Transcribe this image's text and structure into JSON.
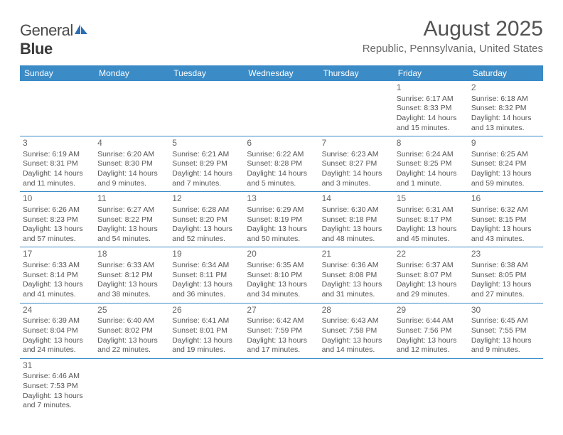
{
  "logo": {
    "word1": "General",
    "word2": "Blue"
  },
  "title": "August 2025",
  "location": "Republic, Pennsylvania, United States",
  "colors": {
    "header_bg": "#3b8bc7",
    "header_fg": "#ffffff",
    "border": "#3b8bc7",
    "text": "#555555",
    "title": "#535353"
  },
  "weekdays": [
    "Sunday",
    "Monday",
    "Tuesday",
    "Wednesday",
    "Thursday",
    "Friday",
    "Saturday"
  ],
  "weeks": [
    [
      null,
      null,
      null,
      null,
      null,
      {
        "n": "1",
        "sr": "6:17 AM",
        "ss": "8:33 PM",
        "dl": "14 hours and 15 minutes."
      },
      {
        "n": "2",
        "sr": "6:18 AM",
        "ss": "8:32 PM",
        "dl": "14 hours and 13 minutes."
      }
    ],
    [
      {
        "n": "3",
        "sr": "6:19 AM",
        "ss": "8:31 PM",
        "dl": "14 hours and 11 minutes."
      },
      {
        "n": "4",
        "sr": "6:20 AM",
        "ss": "8:30 PM",
        "dl": "14 hours and 9 minutes."
      },
      {
        "n": "5",
        "sr": "6:21 AM",
        "ss": "8:29 PM",
        "dl": "14 hours and 7 minutes."
      },
      {
        "n": "6",
        "sr": "6:22 AM",
        "ss": "8:28 PM",
        "dl": "14 hours and 5 minutes."
      },
      {
        "n": "7",
        "sr": "6:23 AM",
        "ss": "8:27 PM",
        "dl": "14 hours and 3 minutes."
      },
      {
        "n": "8",
        "sr": "6:24 AM",
        "ss": "8:25 PM",
        "dl": "14 hours and 1 minute."
      },
      {
        "n": "9",
        "sr": "6:25 AM",
        "ss": "8:24 PM",
        "dl": "13 hours and 59 minutes."
      }
    ],
    [
      {
        "n": "10",
        "sr": "6:26 AM",
        "ss": "8:23 PM",
        "dl": "13 hours and 57 minutes."
      },
      {
        "n": "11",
        "sr": "6:27 AM",
        "ss": "8:22 PM",
        "dl": "13 hours and 54 minutes."
      },
      {
        "n": "12",
        "sr": "6:28 AM",
        "ss": "8:20 PM",
        "dl": "13 hours and 52 minutes."
      },
      {
        "n": "13",
        "sr": "6:29 AM",
        "ss": "8:19 PM",
        "dl": "13 hours and 50 minutes."
      },
      {
        "n": "14",
        "sr": "6:30 AM",
        "ss": "8:18 PM",
        "dl": "13 hours and 48 minutes."
      },
      {
        "n": "15",
        "sr": "6:31 AM",
        "ss": "8:17 PM",
        "dl": "13 hours and 45 minutes."
      },
      {
        "n": "16",
        "sr": "6:32 AM",
        "ss": "8:15 PM",
        "dl": "13 hours and 43 minutes."
      }
    ],
    [
      {
        "n": "17",
        "sr": "6:33 AM",
        "ss": "8:14 PM",
        "dl": "13 hours and 41 minutes."
      },
      {
        "n": "18",
        "sr": "6:33 AM",
        "ss": "8:12 PM",
        "dl": "13 hours and 38 minutes."
      },
      {
        "n": "19",
        "sr": "6:34 AM",
        "ss": "8:11 PM",
        "dl": "13 hours and 36 minutes."
      },
      {
        "n": "20",
        "sr": "6:35 AM",
        "ss": "8:10 PM",
        "dl": "13 hours and 34 minutes."
      },
      {
        "n": "21",
        "sr": "6:36 AM",
        "ss": "8:08 PM",
        "dl": "13 hours and 31 minutes."
      },
      {
        "n": "22",
        "sr": "6:37 AM",
        "ss": "8:07 PM",
        "dl": "13 hours and 29 minutes."
      },
      {
        "n": "23",
        "sr": "6:38 AM",
        "ss": "8:05 PM",
        "dl": "13 hours and 27 minutes."
      }
    ],
    [
      {
        "n": "24",
        "sr": "6:39 AM",
        "ss": "8:04 PM",
        "dl": "13 hours and 24 minutes."
      },
      {
        "n": "25",
        "sr": "6:40 AM",
        "ss": "8:02 PM",
        "dl": "13 hours and 22 minutes."
      },
      {
        "n": "26",
        "sr": "6:41 AM",
        "ss": "8:01 PM",
        "dl": "13 hours and 19 minutes."
      },
      {
        "n": "27",
        "sr": "6:42 AM",
        "ss": "7:59 PM",
        "dl": "13 hours and 17 minutes."
      },
      {
        "n": "28",
        "sr": "6:43 AM",
        "ss": "7:58 PM",
        "dl": "13 hours and 14 minutes."
      },
      {
        "n": "29",
        "sr": "6:44 AM",
        "ss": "7:56 PM",
        "dl": "13 hours and 12 minutes."
      },
      {
        "n": "30",
        "sr": "6:45 AM",
        "ss": "7:55 PM",
        "dl": "13 hours and 9 minutes."
      }
    ],
    [
      {
        "n": "31",
        "sr": "6:46 AM",
        "ss": "7:53 PM",
        "dl": "13 hours and 7 minutes."
      },
      null,
      null,
      null,
      null,
      null,
      null
    ]
  ],
  "labels": {
    "sunrise": "Sunrise:",
    "sunset": "Sunset:",
    "daylight": "Daylight:"
  }
}
